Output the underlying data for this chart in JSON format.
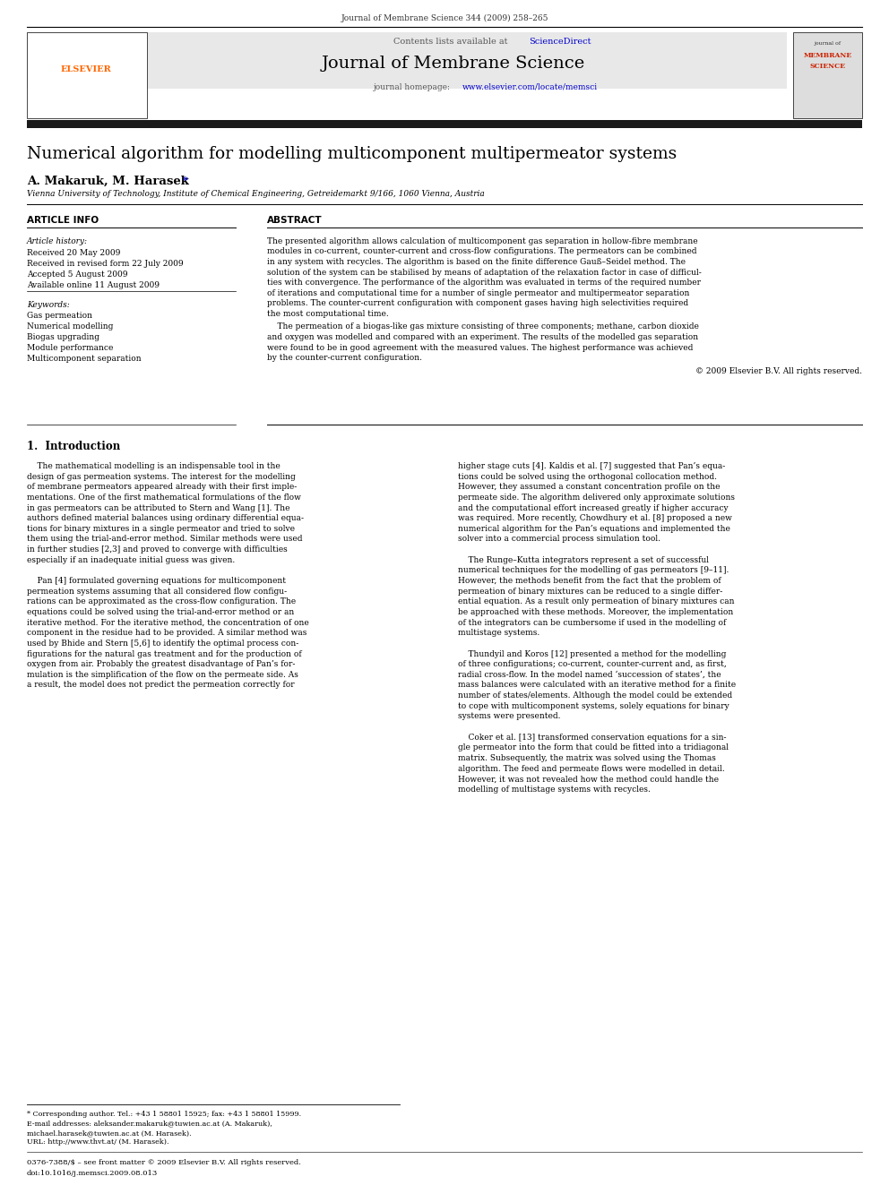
{
  "page_width": 9.92,
  "page_height": 13.23,
  "bg_color": "#ffffff",
  "journal_ref": "Journal of Membrane Science 344 (2009) 258–265",
  "header_bg": "#e8e8e8",
  "contents_text": "Contents lists available at",
  "sciencedirect_text": "ScienceDirect",
  "sciencedirect_color": "#0000cc",
  "journal_title": "Journal of Membrane Science",
  "journal_homepage_label": "journal homepage:",
  "journal_url": "www.elsevier.com/locate/memsci",
  "journal_url_color": "#0000cc",
  "elsevier_color": "#FF6600",
  "dark_bar_color": "#1a1a1a",
  "paper_title": "Numerical algorithm for modelling multicomponent multipermeator systems",
  "authors": "A. Makaruk, M. Harasek*",
  "affiliation": "Vienna University of Technology, Institute of Chemical Engineering, Getreidemarkt 9/166, 1060 Vienna, Austria",
  "article_info_header": "ARTICLE INFO",
  "abstract_header": "ABSTRACT",
  "article_history_label": "Article history:",
  "received1": "Received 20 May 2009",
  "received2": "Received in revised form 22 July 2009",
  "accepted": "Accepted 5 August 2009",
  "available": "Available online 11 August 2009",
  "keywords_label": "Keywords:",
  "keywords": [
    "Gas permeation",
    "Numerical modelling",
    "Biogas upgrading",
    "Module performance",
    "Multicomponent separation"
  ],
  "abstract_p1": "The presented algorithm allows calculation of multicomponent gas separation in hollow-fibre membrane modules in co-current, counter-current and cross-flow configurations. The permeators can be combined in any system with recycles. The algorithm is based on the finite difference Gauß–Seidel method. The solution of the system can be stabilised by means of adaptation of the relaxation factor in case of difficulties with convergence. The performance of the algorithm was evaluated in terms of the required number of iterations and computational time for a number of single permeator and multipermeator separation problems. The counter-current configuration with component gases having high selectivities required the most computational time.",
  "abstract_p2": "The permeation of a biogas-like gas mixture consisting of three components; methane, carbon dioxide and oxygen was modelled and compared with an experiment. The results of the modelled gas separation were found to be in good agreement with the measured values. The highest performance was achieved by the counter-current configuration.",
  "copyright": "© 2009 Elsevier B.V. All rights reserved.",
  "section1_title": "1.  Introduction",
  "intro_col1": "The mathematical modelling is an indispensable tool in the design of gas permeation systems. The interest for the modelling of membrane permeators appeared already with their first implementations. One of the first mathematical formulations of the flow in gas permeators can be attributed to Stern and Wang [1]. The authors defined material balances using ordinary differential equations for binary mixtures in a single permeator and tried to solve them using the trial-and-error method. Similar methods were used in further studies [2,3] and proved to converge with difficulties especially if an inadequate initial guess was given.\n\n    Pan [4] formulated governing equations for multicomponent permeation systems assuming that all considered flow configurations can be approximated as the cross-flow configuration. The equations could be solved using the trial-and-error method or an iterative method. For the iterative method, the concentration of one component in the residue had to be provided. A similar method was used by Bhide and Stern [5,6] to identify the optimal process configurations for the natural gas treatment and for the production of oxygen from air. Probably the greatest disadvantage of Pan’s formulation is the simplification of the flow on the permeate side. As a result, the model does not predict the permeation correctly for",
  "intro_col2": "higher stage cuts [4]. Kaldis et al. [7] suggested that Pan’s equations could be solved using the orthogonal collocation method. However, they assumed a constant concentration profile on the permeate side. The algorithm delivered only approximate solutions and the computational effort increased greatly if higher accuracy was required. More recently, Chowdhury et al. [8] proposed a new numerical algorithm for the Pan’s equations and implemented the solver into a commercial process simulation tool.\n\n    The Runge–Kutta integrators represent a set of successful numerical techniques for the modelling of gas permeators [9–11]. However, the methods benefit from the fact that the problem of permeation of binary mixtures can be reduced to a single differential equation. As a result only permeation of binary mixtures can be approached with these methods. Moreover, the implementation of the integrators can be cumbersome if used in the modelling of multistage systems.\n\n    Thundyil and Koros [12] presented a method for the modelling of three configurations; co-current, counter-current and, as first, radial cross-flow. In the model named ‘succession of states’, the mass balances were calculated with an iterative method for a finite number of states/elements. Although the model could be extended to cope with multicomponent systems, solely equations for binary systems were presented.\n\n    Coker et al. [13] transformed conservation equations for a single permeator into the form that could be fitted into a tridiagonal matrix. Subsequently, the matrix was solved using the Thomas algorithm. The feed and permeate flows were modelled in detail. However, it was not revealed how the method could handle the modelling of multistage systems with recycles.",
  "footnote1": "* Corresponding author. Tel.: +43 1 58801 15925; fax: +43 1 58801 15999.",
  "footnote2": "E-mail addresses: aleksander.makaruk@tuwien.ac.at (A. Makaruk),",
  "footnote3": "michael.harasek@tuwien.ac.at (M. Harasek).",
  "footnote4": "URL: http://www.thvt.at/ (M. Harasek).",
  "footer1": "0376-7388/$ – see front matter © 2009 Elsevier B.V. All rights reserved.",
  "footer2": "doi:10.1016/j.memsci.2009.08.013"
}
